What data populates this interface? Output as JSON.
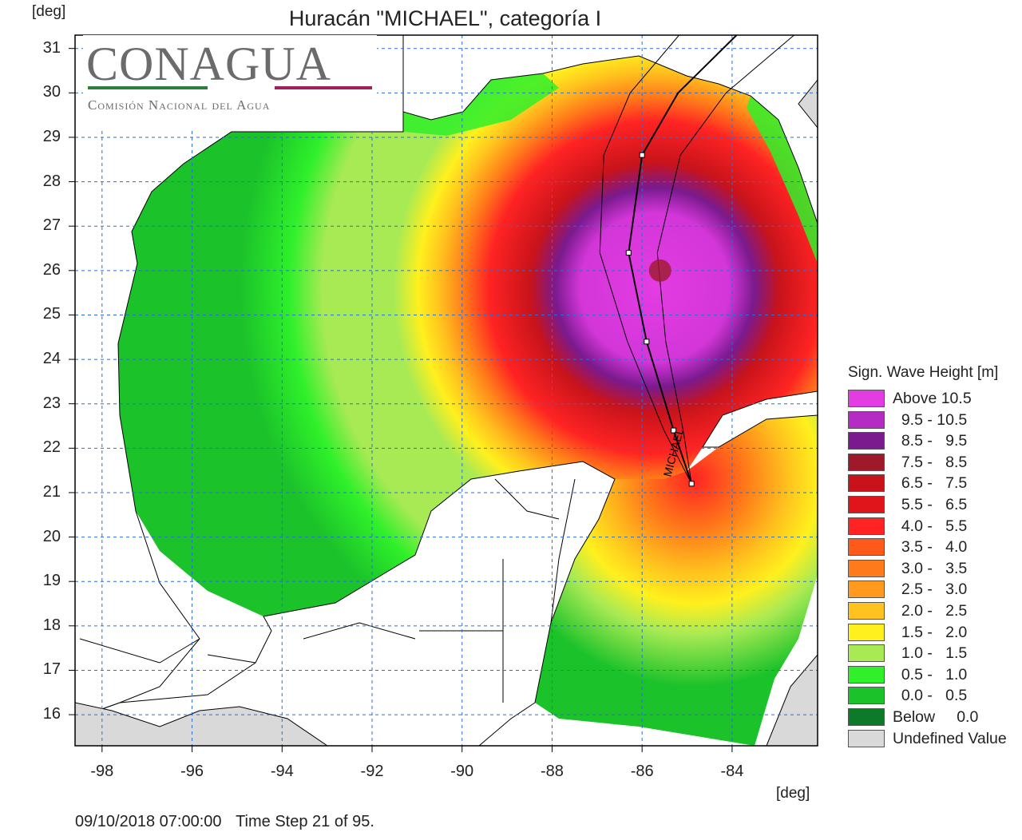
{
  "header": {
    "title": "Huracán \"MICHAEL\", categoría I",
    "y_unit": "[deg]",
    "x_unit": "[deg]"
  },
  "logo": {
    "main_text": "CONAGUA",
    "sub_text": "Comisión Nacional del Agua"
  },
  "axes": {
    "x_ticks": [
      "-98",
      "-96",
      "-94",
      "-92",
      "-90",
      "-88",
      "-86",
      "-84"
    ],
    "x_values": [
      -98,
      -96,
      -94,
      -92,
      -90,
      -88,
      -86,
      -84
    ],
    "y_ticks": [
      "31",
      "30",
      "29",
      "28",
      "27",
      "26",
      "25",
      "24",
      "23",
      "22",
      "21",
      "20",
      "19",
      "18",
      "17",
      "16"
    ],
    "y_values": [
      31,
      30,
      29,
      28,
      27,
      26,
      25,
      24,
      23,
      22,
      21,
      20,
      19,
      18,
      17,
      16
    ],
    "x_range": [
      -98.6,
      -82.1
    ],
    "y_range": [
      15.3,
      31.3
    ]
  },
  "storm": {
    "label": "MICHAEL",
    "track": [
      {
        "lon": -84.9,
        "lat": 21.2
      },
      {
        "lon": -85.3,
        "lat": 22.4
      },
      {
        "lon": -85.9,
        "lat": 24.4
      },
      {
        "lon": -86.3,
        "lat": 26.4
      },
      {
        "lon": -86.0,
        "lat": 28.6
      },
      {
        "lon": -85.2,
        "lat": 30.0
      },
      {
        "lon": -83.9,
        "lat": 31.3
      }
    ],
    "eye": {
      "lon": -85.6,
      "lat": 26.0
    }
  },
  "legend": {
    "title": "Sign. Wave Height [m]",
    "items": [
      {
        "label": "Above 10.5",
        "color": "#e33ce3"
      },
      {
        "label": "  9.5 - 10.5",
        "color": "#b52cc4"
      },
      {
        "label": "  8.5 -   9.5",
        "color": "#7a1a8e"
      },
      {
        "label": "  7.5 -   8.5",
        "color": "#9e1a2a"
      },
      {
        "label": "  6.5 -   7.5",
        "color": "#c8131b"
      },
      {
        "label": "  5.5 -   6.5",
        "color": "#e0141b"
      },
      {
        "label": "  4.0 -   5.5",
        "color": "#ff2323"
      },
      {
        "label": "  3.5 -   4.0",
        "color": "#ff5a19"
      },
      {
        "label": "  3.0 -   3.5",
        "color": "#ff7a1a"
      },
      {
        "label": "  2.5 -   3.0",
        "color": "#ff9a1e"
      },
      {
        "label": "  2.0 -   2.5",
        "color": "#ffc21e"
      },
      {
        "label": "  1.5 -   2.0",
        "color": "#fff01e"
      },
      {
        "label": "  1.0 -   1.5",
        "color": "#a8ea54"
      },
      {
        "label": "  0.5 -   1.0",
        "color": "#2ff02a"
      },
      {
        "label": "  0.0 -   0.5",
        "color": "#1bc22a"
      },
      {
        "label": "Below     0.0",
        "color": "#0d7a2a"
      },
      {
        "label": "Undefined Value",
        "color": "#d9d9d9"
      }
    ]
  },
  "footer": {
    "datetime": "09/10/2018 07:00:00",
    "time_step": "Time Step 21 of 95."
  }
}
